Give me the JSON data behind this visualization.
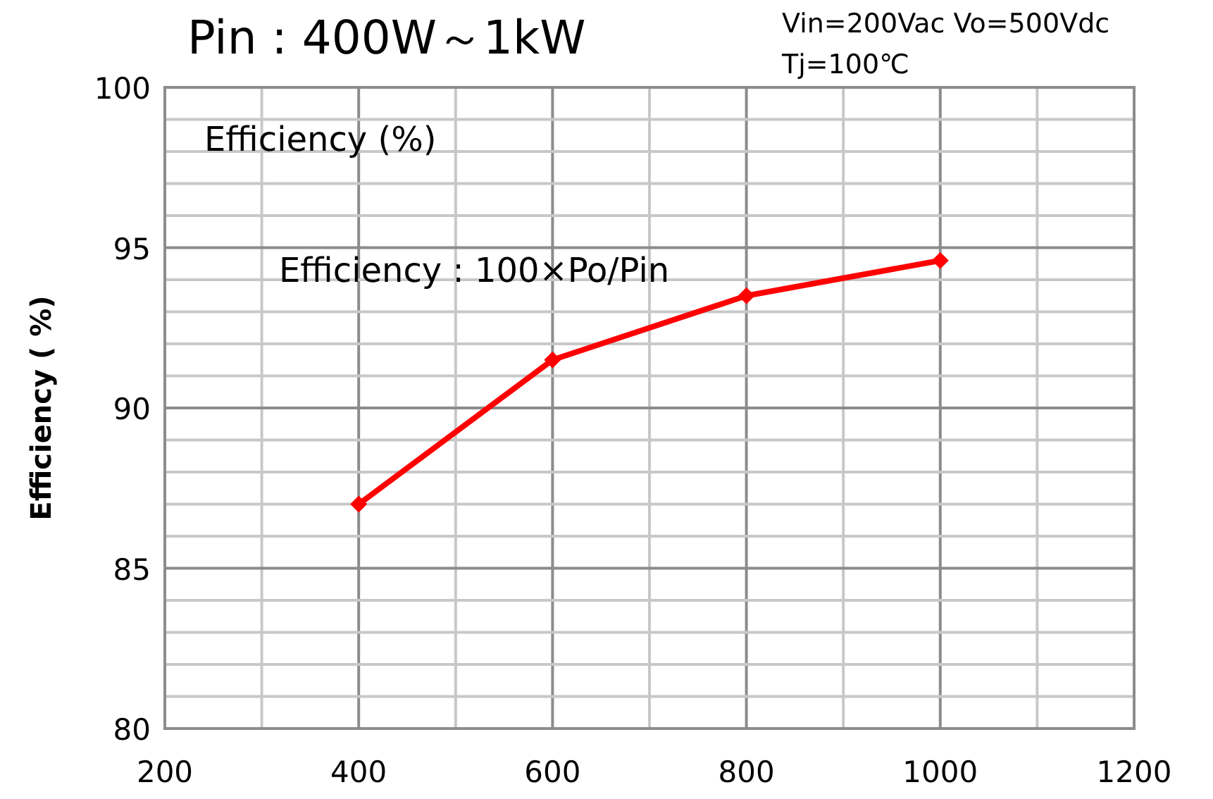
{
  "chart_data": {
    "type": "line",
    "title": "Pin : 400W～1kW",
    "annotations": [
      "Vin=200Vac  Vo=500Vdc",
      "Tj=100℃",
      "Efficiency (%)",
      "Efficiency : 100×Po/Pin"
    ],
    "ylabel": "Efficiency ( %)",
    "x": [
      400,
      600,
      800,
      1000
    ],
    "series": [
      {
        "color": "#ff0000",
        "values": [
          87.0,
          91.5,
          93.5,
          94.6
        ]
      }
    ],
    "marker": "diamond",
    "line_style": "solid",
    "grid": true,
    "xlim": [
      200,
      1200
    ],
    "xticks": [
      200,
      {
        "value": 300,
        "label": null
      },
      400,
      {
        "value": 500,
        "label": null
      },
      600,
      {
        "value": 700,
        "label": null
      },
      800,
      {
        "value": 900,
        "label": null
      },
      1000,
      {
        "value": 1100,
        "label": null
      },
      1200
    ],
    "ylim": [
      80,
      100
    ],
    "yticks": [
      80,
      {
        "value": 81,
        "label": null
      },
      {
        "value": 82,
        "label": null
      },
      {
        "value": 83,
        "label": null
      },
      {
        "value": 84,
        "label": null
      },
      85,
      {
        "value": 86,
        "label": null
      },
      {
        "value": 87,
        "label": null
      },
      {
        "value": 88,
        "label": null
      },
      {
        "value": 89,
        "label": null
      },
      90,
      {
        "value": 91,
        "label": null
      },
      {
        "value": 92,
        "label": null
      },
      {
        "value": 93,
        "label": null
      },
      {
        "value": 94,
        "label": null
      },
      95,
      {
        "value": 96,
        "label": null
      },
      {
        "value": 97,
        "label": null
      },
      {
        "value": 98,
        "label": null
      },
      {
        "value": 99,
        "label": null
      },
      100
    ]
  }
}
